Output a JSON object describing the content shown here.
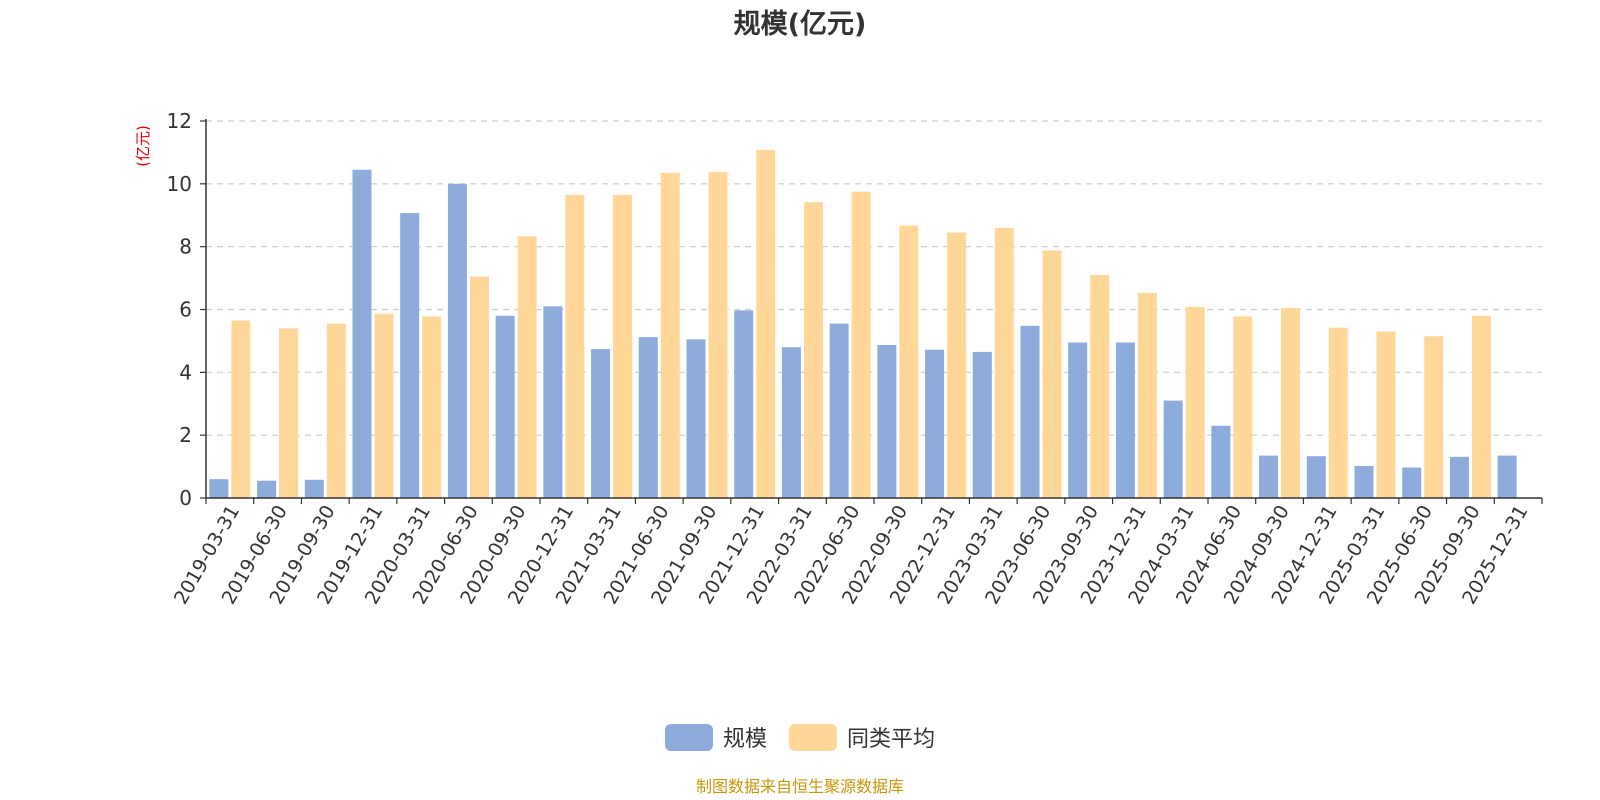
{
  "chart_data": {
    "type": "bar",
    "title": "规模(亿元)",
    "ylabel": "(亿元)",
    "ylim": [
      0,
      12
    ],
    "yticks": [
      "0",
      "2",
      "4",
      "6",
      "8",
      "10",
      "12"
    ],
    "grid": "dashed horizontal",
    "legend_position": "bottom",
    "categories": [
      "2019-03-31",
      "2019-06-30",
      "2019-09-30",
      "2019-12-31",
      "2020-03-31",
      "2020-06-30",
      "2020-09-30",
      "2020-12-31",
      "2021-03-31",
      "2021-06-30",
      "2021-09-30",
      "2021-12-31",
      "2022-03-31",
      "2022-06-30",
      "2022-09-30",
      "2022-12-31",
      "2023-03-31",
      "2023-06-30",
      "2023-09-30",
      "2023-12-31",
      "2024-03-31",
      "2024-06-30",
      "2024-09-30",
      "2024-12-31",
      "2025-03-31",
      "2025-06-30",
      "2025-09-30",
      "2025-12-31"
    ],
    "series": [
      {
        "name": "规模",
        "color": "#8eacdb",
        "values": [
          0.6,
          0.55,
          0.58,
          10.45,
          9.07,
          10.0,
          5.8,
          6.1,
          4.74,
          5.12,
          5.05,
          5.97,
          4.8,
          5.55,
          4.87,
          4.72,
          4.65,
          5.48,
          4.95,
          4.95,
          3.1,
          2.3,
          1.35,
          1.33,
          1.02,
          0.97,
          1.31,
          1.35
        ]
      },
      {
        "name": "同类平均",
        "color": "#ffd899",
        "values": [
          5.65,
          5.4,
          5.55,
          5.87,
          5.78,
          7.05,
          8.33,
          9.65,
          9.65,
          10.35,
          10.38,
          11.08,
          9.42,
          9.75,
          8.67,
          8.45,
          8.6,
          7.88,
          7.1,
          6.53,
          6.08,
          5.78,
          6.05,
          5.42,
          5.3,
          5.15,
          5.8,
          null
        ]
      }
    ]
  },
  "footer": {
    "source": "制图数据来自恒生聚源数据库"
  }
}
